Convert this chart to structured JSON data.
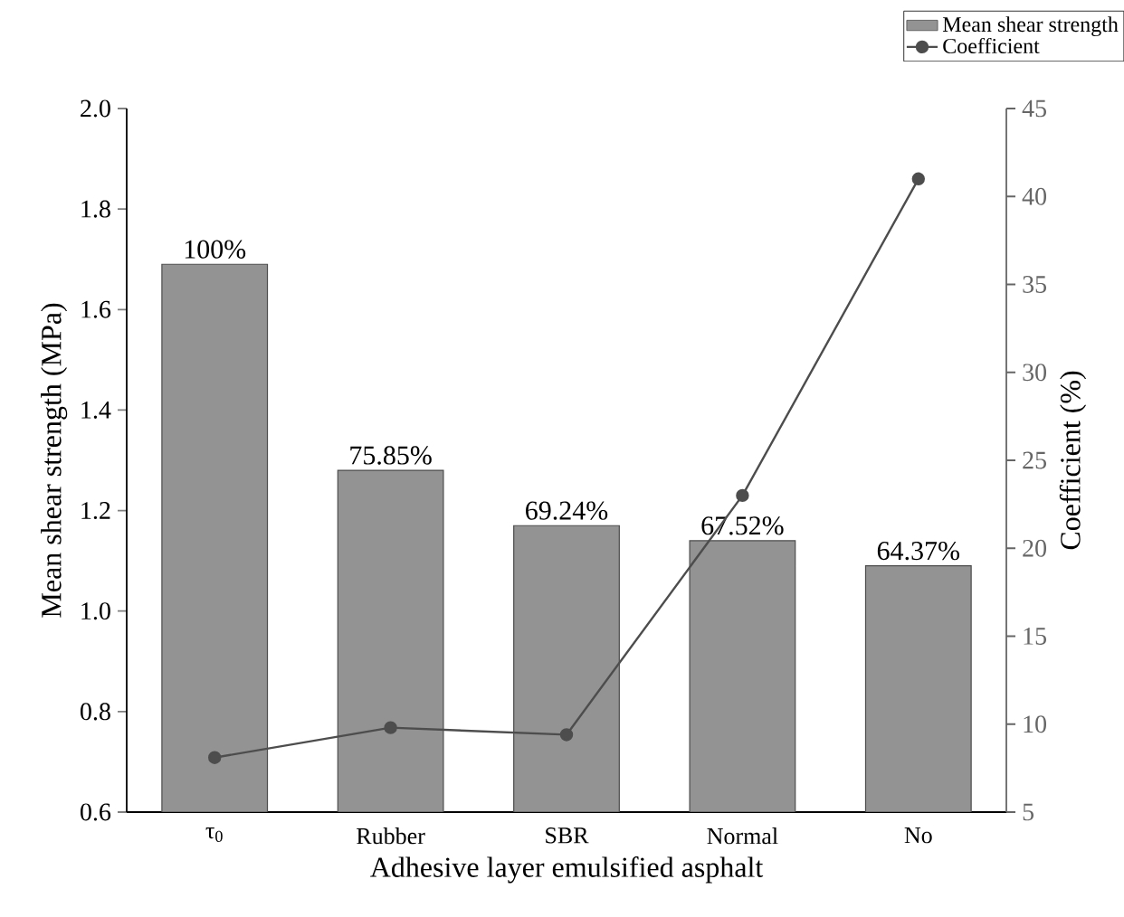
{
  "chart_data": {
    "type": "bar",
    "xlabel": "Adhesive layer emulsified asphalt",
    "ylabel": "Mean shear strength (MPa)",
    "y2label": "Coefficient (%)",
    "categories": [
      "τ$_{0}$",
      "Rubber",
      "SBR",
      "Normal",
      "No"
    ],
    "series": [
      {
        "name": "Mean shear strength",
        "color": "#939393",
        "values": [
          1.69,
          1.28,
          1.17,
          1.14,
          1.09
        ]
      },
      {
        "name": "Coefficient",
        "type": "line",
        "axis": "y2",
        "color": "#4d4d4d",
        "values": [
          8.1,
          9.8,
          9.4,
          23,
          41
        ]
      }
    ],
    "ylim": [
      0.6,
      2.0
    ],
    "yticks": [
      0.6,
      0.8,
      {
        "value": 1,
        "label": "1.0"
      },
      1.2,
      1.4,
      1.6,
      1.8,
      {
        "value": 2,
        "label": "2.0"
      }
    ],
    "y2lim": [
      5,
      45
    ],
    "y2ticks": [
      5,
      10,
      15,
      20,
      25,
      30,
      35,
      40,
      45
    ],
    "annotations": [
      {
        "text": "100%",
        "x": "τ$_{0}$",
        "y": 1.69
      },
      {
        "text": "75.85%",
        "x": "Rubber",
        "y": 1.28
      },
      {
        "text": "69.24%",
        "x": "SBR",
        "y": 1.17
      },
      {
        "text": "67.52%",
        "x": "Normal",
        "y": 1.14
      },
      {
        "text": "64.37%",
        "x": "No",
        "y": 1.09
      }
    ],
    "marker": "circle",
    "legend": "top right"
  }
}
